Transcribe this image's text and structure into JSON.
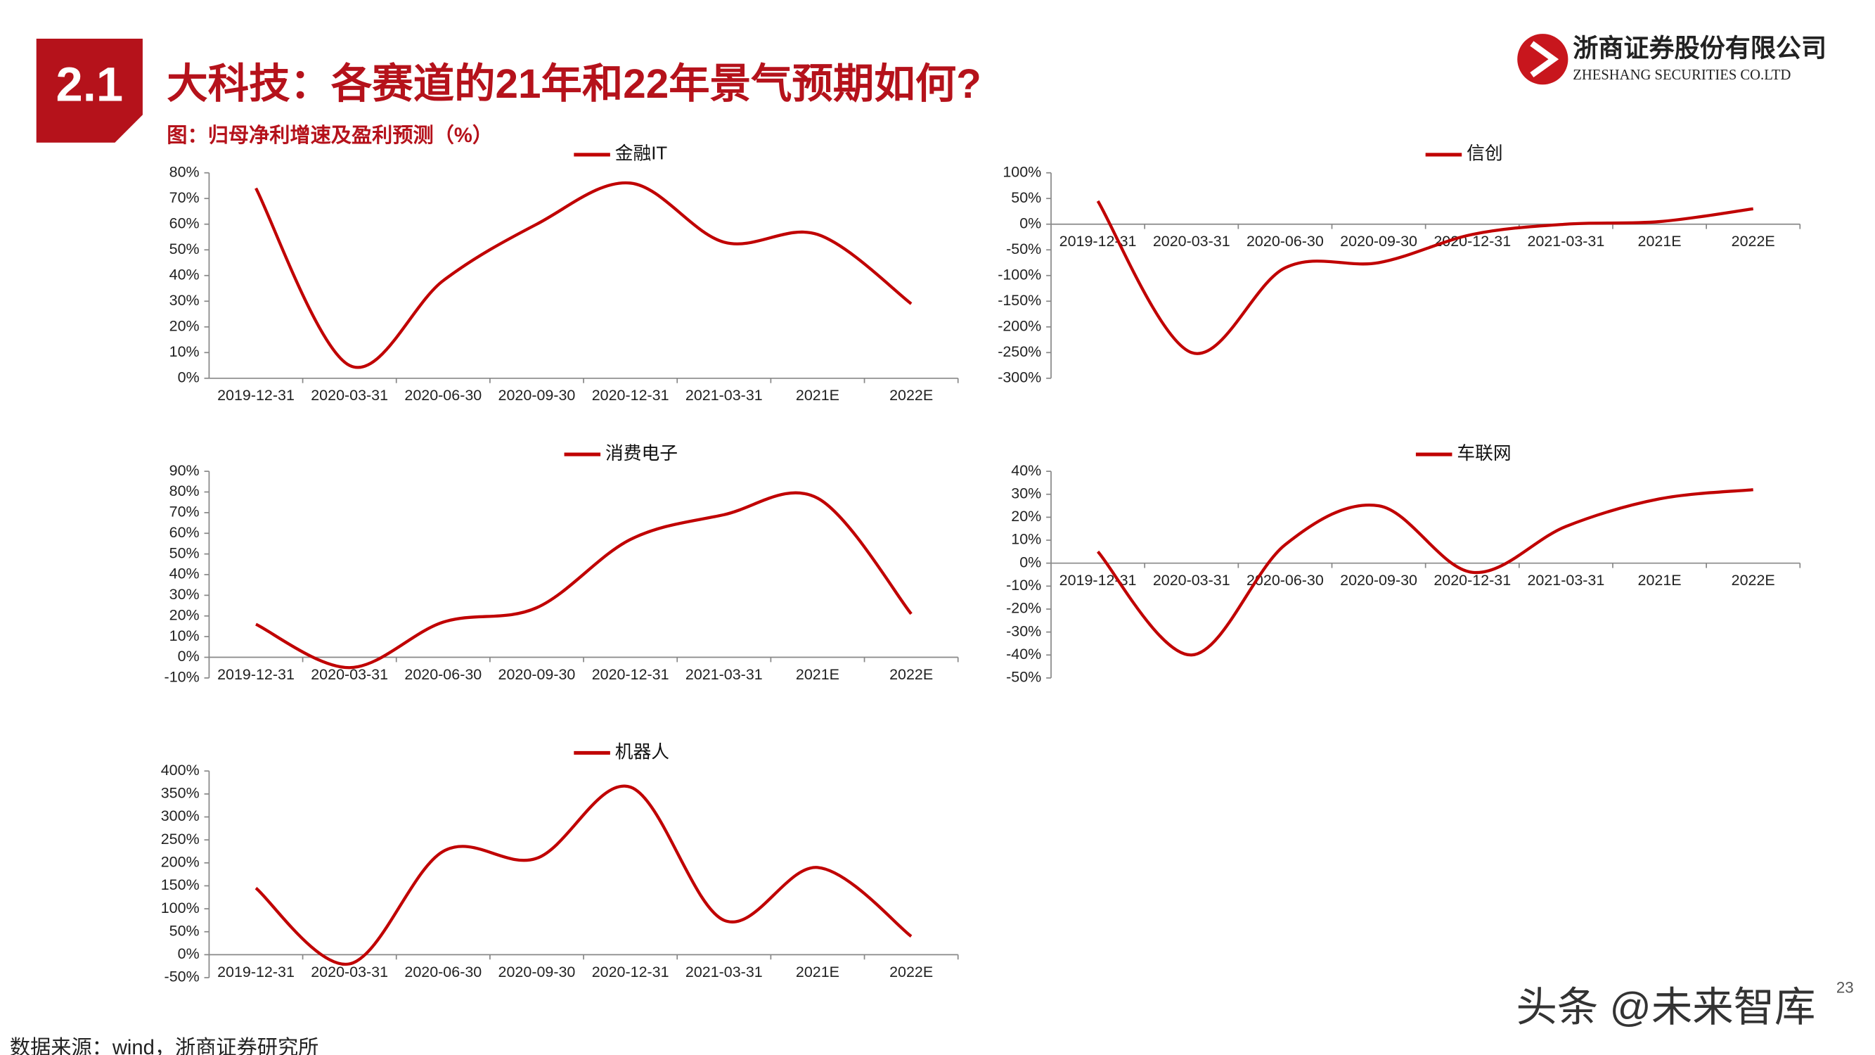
{
  "header": {
    "section": "2.1",
    "title": "大科技：各赛道的21年和22年景气预期如何?",
    "subtitle": "图：归母净利增速及盈利预测（%）"
  },
  "logo": {
    "name": "浙商证券股份有限公司",
    "english": "ZHESHANG SECURITIES CO.LTD"
  },
  "source": "数据来源：wind，浙商证券研究所",
  "watermark": "头条 @未来智库",
  "page_number": "23",
  "chart_data": [
    {
      "type": "line",
      "categories": [
        "2019-12-31",
        "2020-03-31",
        "2020-06-30",
        "2020-09-30",
        "2020-12-31",
        "2021-03-31",
        "2021E",
        "2022E"
      ],
      "series": [
        {
          "name": "金融IT",
          "color": "#c00000",
          "values": [
            74,
            5,
            38,
            60,
            76,
            53,
            56,
            29
          ]
        }
      ],
      "ylim": [
        0,
        80
      ],
      "yticks": [
        {
          "value": 0,
          "label": "0%"
        },
        {
          "value": 10,
          "label": "10%"
        },
        {
          "value": 20,
          "label": "20%"
        },
        {
          "value": 30,
          "label": "30%"
        },
        {
          "value": 40,
          "label": "40%"
        },
        {
          "value": 50,
          "label": "50%"
        },
        {
          "value": 60,
          "label": "60%"
        },
        {
          "value": 70,
          "label": "70%"
        },
        {
          "value": 80,
          "label": "80%"
        }
      ]
    },
    {
      "type": "line",
      "categories": [
        "2019-12-31",
        "2020-03-31",
        "2020-06-30",
        "2020-09-30",
        "2020-12-31",
        "2021-03-31",
        "2021E",
        "2022E"
      ],
      "series": [
        {
          "name": "信创",
          "color": "#c00000",
          "values": [
            45,
            -250,
            -85,
            -75,
            -20,
            0,
            5,
            30
          ]
        }
      ],
      "ylim": [
        -300,
        100
      ],
      "yticks": [
        {
          "value": -300,
          "label": "-300%"
        },
        {
          "value": -250,
          "label": "-250%"
        },
        {
          "value": -200,
          "label": "-200%"
        },
        {
          "value": -150,
          "label": "-150%"
        },
        {
          "value": -100,
          "label": "-100%"
        },
        {
          "value": -50,
          "label": "-50%"
        },
        {
          "value": 0,
          "label": "0%"
        },
        {
          "value": 50,
          "label": "50%"
        },
        {
          "value": 100,
          "label": "100%"
        }
      ]
    },
    {
      "type": "line",
      "categories": [
        "2019-12-31",
        "2020-03-31",
        "2020-06-30",
        "2020-09-30",
        "2020-12-31",
        "2021-03-31",
        "2021E",
        "2022E"
      ],
      "series": [
        {
          "name": "消费电子",
          "color": "#c00000",
          "values": [
            16,
            -5,
            17,
            24,
            57,
            69,
            77,
            21
          ]
        }
      ],
      "ylim": [
        -10,
        90
      ],
      "yticks": [
        {
          "value": -10,
          "label": "-10%"
        },
        {
          "value": 0,
          "label": "0%"
        },
        {
          "value": 10,
          "label": "10%"
        },
        {
          "value": 20,
          "label": "20%"
        },
        {
          "value": 30,
          "label": "30%"
        },
        {
          "value": 40,
          "label": "40%"
        },
        {
          "value": 50,
          "label": "50%"
        },
        {
          "value": 60,
          "label": "60%"
        },
        {
          "value": 70,
          "label": "70%"
        },
        {
          "value": 80,
          "label": "80%"
        },
        {
          "value": 90,
          "label": "90%"
        }
      ]
    },
    {
      "type": "line",
      "categories": [
        "2019-12-31",
        "2020-03-31",
        "2020-06-30",
        "2020-09-30",
        "2020-12-31",
        "2021-03-31",
        "2021E",
        "2022E"
      ],
      "series": [
        {
          "name": "车联网",
          "color": "#c00000",
          "values": [
            5,
            -40,
            8,
            25,
            -4,
            16,
            28,
            32
          ]
        }
      ],
      "ylim": [
        -50,
        40
      ],
      "yticks": [
        {
          "value": -50,
          "label": "-50%"
        },
        {
          "value": -40,
          "label": "-40%"
        },
        {
          "value": -30,
          "label": "-30%"
        },
        {
          "value": -20,
          "label": "-20%"
        },
        {
          "value": -10,
          "label": "-10%"
        },
        {
          "value": 0,
          "label": "0%"
        },
        {
          "value": 10,
          "label": "10%"
        },
        {
          "value": 20,
          "label": "20%"
        },
        {
          "value": 30,
          "label": "30%"
        },
        {
          "value": 40,
          "label": "40%"
        }
      ]
    },
    {
      "type": "line",
      "categories": [
        "2019-12-31",
        "2020-03-31",
        "2020-06-30",
        "2020-09-30",
        "2020-12-31",
        "2021-03-31",
        "2021E",
        "2022E"
      ],
      "series": [
        {
          "name": "机器人",
          "color": "#c00000",
          "values": [
            145,
            -20,
            225,
            210,
            365,
            75,
            190,
            40
          ]
        }
      ],
      "ylim": [
        -50,
        400
      ],
      "yticks": [
        {
          "value": -50,
          "label": "-50%"
        },
        {
          "value": 0,
          "label": "0%"
        },
        {
          "value": 50,
          "label": "50%"
        },
        {
          "value": 100,
          "label": "100%"
        },
        {
          "value": 150,
          "label": "150%"
        },
        {
          "value": 200,
          "label": "200%"
        },
        {
          "value": 250,
          "label": "250%"
        },
        {
          "value": 300,
          "label": "300%"
        },
        {
          "value": 350,
          "label": "350%"
        },
        {
          "value": 400,
          "label": "400%"
        }
      ]
    }
  ]
}
